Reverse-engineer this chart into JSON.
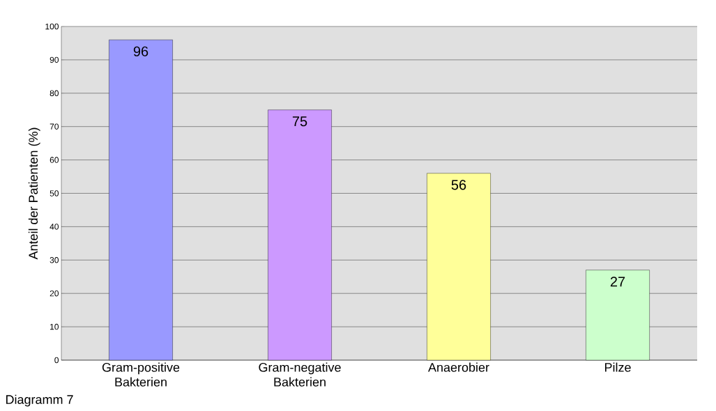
{
  "chart_data": {
    "type": "bar",
    "ylabel": "Anteil der Patienten (%)",
    "categories": [
      "Gram-positive Bakterien",
      "Gram-negative Bakterien",
      "Anaerobier",
      "Pilze"
    ],
    "values": [
      96,
      75,
      56,
      27
    ],
    "colors": [
      "#9999ff",
      "#cc99ff",
      "#ffff99",
      "#ccffcc"
    ],
    "ylim": [
      0,
      100
    ],
    "yticks": [
      0,
      10,
      20,
      30,
      40,
      50,
      60,
      70,
      80,
      90,
      100
    ],
    "grid": "y",
    "data_labels": true,
    "annotations": [
      "Diagramm 7"
    ]
  }
}
